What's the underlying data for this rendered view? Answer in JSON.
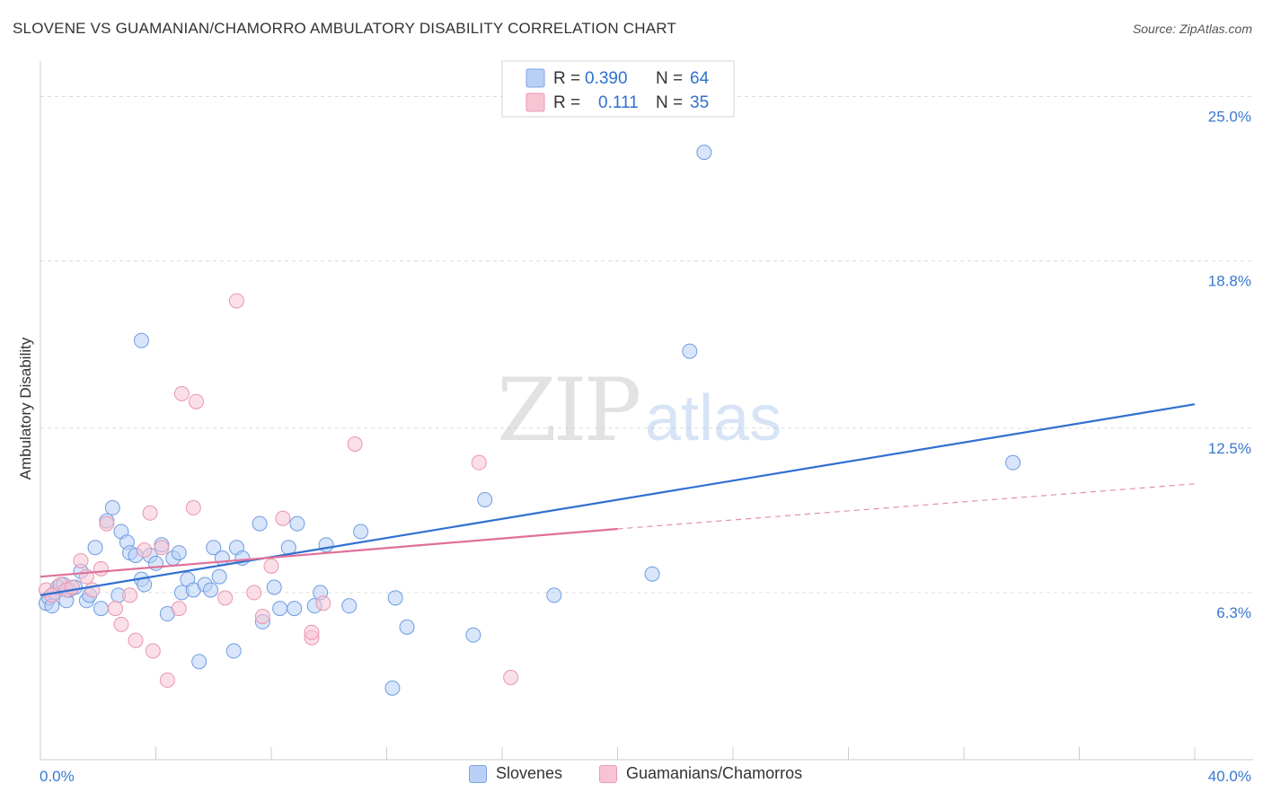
{
  "header": {
    "title": "SLOVENE VS GUAMANIAN/CHAMORRO AMBULATORY DISABILITY CORRELATION CHART",
    "source": "Source: ZipAtlas.com"
  },
  "watermark": {
    "part1": "ZIP",
    "part2": "atlas"
  },
  "colors": {
    "blue": "#3070d0",
    "blue_fill": "#b8d0f5",
    "pink": "#e07098",
    "pink_fill": "#f8c4d4",
    "grid": "#dddddd",
    "axis_label_blue": "#3878d0"
  },
  "legend_box": {
    "rows": [
      {
        "r_label": "R =",
        "r_value": "0.390",
        "n_label": "N =",
        "n_value": "64"
      },
      {
        "r_label": "R =",
        "r_value": "0.111",
        "n_label": "N =",
        "n_value": "35"
      }
    ]
  },
  "bottom_legend": {
    "items": [
      {
        "label": "Slovenes"
      },
      {
        "label": "Guamanians/Chamorros"
      }
    ]
  },
  "chart_data": {
    "type": "scatter",
    "title": "SLOVENE VS GUAMANIAN/CHAMORRO AMBULATORY DISABILITY CORRELATION CHART",
    "xlabel": "",
    "ylabel": "Ambulatory Disability",
    "xlim": [
      0,
      40
    ],
    "ylim": [
      0,
      26
    ],
    "x_tick_labels": [
      "0.0%",
      "40.0%"
    ],
    "y_ticks": [
      6.3,
      12.5,
      18.8,
      25.0
    ],
    "y_tick_labels": [
      "6.3%",
      "12.5%",
      "18.8%",
      "25.0%"
    ],
    "grid": "horizontal dashed",
    "legend_position": "top-center",
    "series": [
      {
        "name": "Slovenes",
        "r": 0.39,
        "n": 64,
        "trend": {
          "x_start": 0,
          "y_start": 6.2,
          "x_end": 40,
          "y_end": 13.4
        },
        "points": [
          [
            0.2,
            5.9
          ],
          [
            0.3,
            6.1
          ],
          [
            0.4,
            5.8
          ],
          [
            0.5,
            6.3
          ],
          [
            0.6,
            6.5
          ],
          [
            0.8,
            6.6
          ],
          [
            0.9,
            6.0
          ],
          [
            1.0,
            6.4
          ],
          [
            1.2,
            6.5
          ],
          [
            1.4,
            7.1
          ],
          [
            1.6,
            6.0
          ],
          [
            1.7,
            6.2
          ],
          [
            1.9,
            8.0
          ],
          [
            2.1,
            5.7
          ],
          [
            2.3,
            9.0
          ],
          [
            2.5,
            9.5
          ],
          [
            2.7,
            6.2
          ],
          [
            2.8,
            8.6
          ],
          [
            3.0,
            8.2
          ],
          [
            3.1,
            7.8
          ],
          [
            3.3,
            7.7
          ],
          [
            3.5,
            6.8
          ],
          [
            3.6,
            6.6
          ],
          [
            3.5,
            15.8
          ],
          [
            3.8,
            7.7
          ],
          [
            4.0,
            7.4
          ],
          [
            4.2,
            8.1
          ],
          [
            4.4,
            5.5
          ],
          [
            4.6,
            7.6
          ],
          [
            4.8,
            7.8
          ],
          [
            4.9,
            6.3
          ],
          [
            5.1,
            6.8
          ],
          [
            5.3,
            6.4
          ],
          [
            5.5,
            3.7
          ],
          [
            5.7,
            6.6
          ],
          [
            5.9,
            6.4
          ],
          [
            6.0,
            8.0
          ],
          [
            6.2,
            6.9
          ],
          [
            6.3,
            7.6
          ],
          [
            6.7,
            4.1
          ],
          [
            6.8,
            8.0
          ],
          [
            7.0,
            7.6
          ],
          [
            7.6,
            8.9
          ],
          [
            7.7,
            5.2
          ],
          [
            8.1,
            6.5
          ],
          [
            8.3,
            5.7
          ],
          [
            8.6,
            8.0
          ],
          [
            8.8,
            5.7
          ],
          [
            8.9,
            8.9
          ],
          [
            9.5,
            5.8
          ],
          [
            9.7,
            6.3
          ],
          [
            9.9,
            8.1
          ],
          [
            10.7,
            5.8
          ],
          [
            11.1,
            8.6
          ],
          [
            12.2,
            2.7
          ],
          [
            12.3,
            6.1
          ],
          [
            12.7,
            5.0
          ],
          [
            15.0,
            4.7
          ],
          [
            15.4,
            9.8
          ],
          [
            17.8,
            6.2
          ],
          [
            21.2,
            7.0
          ],
          [
            22.5,
            15.4
          ],
          [
            23.0,
            22.9
          ],
          [
            33.7,
            11.2
          ]
        ]
      },
      {
        "name": "Guamanians/Chamorros",
        "r": 0.111,
        "n": 35,
        "trend": {
          "x_start": 0,
          "y_start": 6.9,
          "x_end": 20,
          "y_end": 8.7
        },
        "trend_extension": {
          "x_start": 20,
          "y_start": 8.7,
          "x_end": 40,
          "y_end": 10.4
        },
        "points": [
          [
            0.2,
            6.4
          ],
          [
            0.4,
            6.2
          ],
          [
            0.7,
            6.6
          ],
          [
            0.9,
            6.4
          ],
          [
            1.1,
            6.5
          ],
          [
            1.4,
            7.5
          ],
          [
            1.6,
            6.9
          ],
          [
            1.8,
            6.4
          ],
          [
            2.1,
            7.2
          ],
          [
            2.3,
            8.9
          ],
          [
            2.6,
            5.7
          ],
          [
            2.8,
            5.1
          ],
          [
            3.1,
            6.2
          ],
          [
            3.3,
            4.5
          ],
          [
            3.6,
            7.9
          ],
          [
            3.8,
            9.3
          ],
          [
            3.9,
            4.1
          ],
          [
            4.2,
            8.0
          ],
          [
            4.4,
            3.0
          ],
          [
            4.8,
            5.7
          ],
          [
            4.9,
            13.8
          ],
          [
            5.3,
            9.5
          ],
          [
            5.4,
            13.5
          ],
          [
            6.4,
            6.1
          ],
          [
            6.8,
            17.3
          ],
          [
            7.4,
            6.3
          ],
          [
            7.7,
            5.4
          ],
          [
            8.0,
            7.3
          ],
          [
            8.4,
            9.1
          ],
          [
            9.4,
            4.6
          ],
          [
            9.4,
            4.8
          ],
          [
            9.8,
            5.9
          ],
          [
            10.9,
            11.9
          ],
          [
            15.2,
            11.2
          ],
          [
            16.3,
            3.1
          ]
        ]
      }
    ]
  }
}
